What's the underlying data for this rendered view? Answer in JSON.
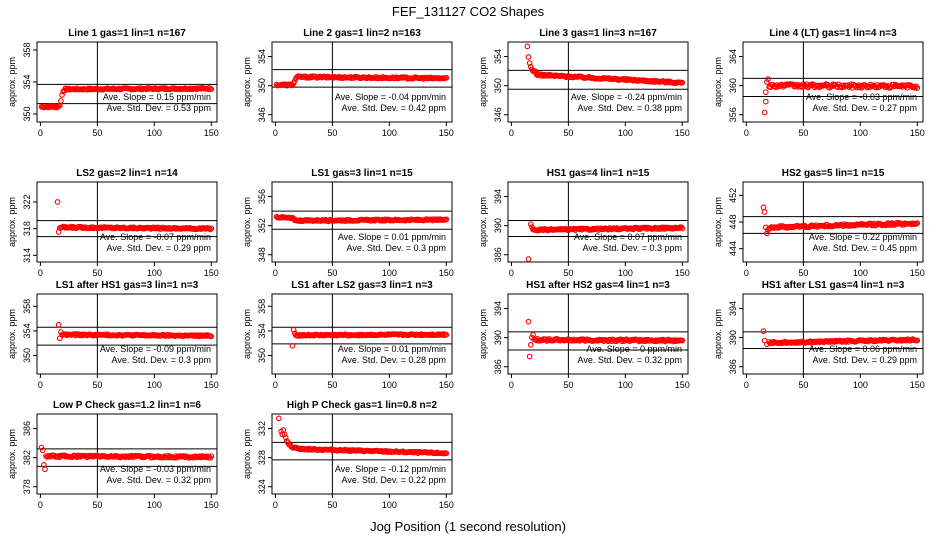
{
  "figure": {
    "title": "FEF_131127  CO2 Shapes",
    "xlabel": "Jog Position (1 second resolution)",
    "marker_color": "#ff0000"
  },
  "chart_data": [
    {
      "type": "scatter",
      "title": "Line 1 gas=1 lin=1 n=167",
      "ylabel": "approx. ppm",
      "xlim": [
        -3,
        155
      ],
      "ylim": [
        349,
        359
      ],
      "yticks": [
        350,
        354,
        358
      ],
      "xticks": [
        0,
        50,
        100,
        150
      ],
      "vline": 50,
      "hlines": [
        353.7,
        351.3
      ],
      "slope": "Ave. Slope =  0.15  ppm/min",
      "std": "Ave. Std. Dev. =  0.53  ppm",
      "segments": [
        {
          "x0": 1,
          "x1": 15,
          "y0": 350.9,
          "y1": 350.9,
          "shape": "flat"
        },
        {
          "x0": 15,
          "x1": 22,
          "y0": 350.9,
          "y1": 353.1,
          "shape": "sigmoid"
        },
        {
          "x0": 22,
          "x1": 150,
          "y0": 353.1,
          "y1": 353.2,
          "shape": "flat"
        }
      ],
      "noise": 0.1
    },
    {
      "type": "scatter",
      "title": "Line 2 gas=1 lin=2 n=163",
      "ylabel": "approx. ppm",
      "xlim": [
        -3,
        155
      ],
      "ylim": [
        345,
        356
      ],
      "yticks": [
        346,
        350,
        354
      ],
      "xticks": [
        0,
        50,
        100,
        150
      ],
      "vline": 50,
      "hlines": [
        352.2,
        349.8
      ],
      "slope": "Ave. Slope =  -0.04  ppm/min",
      "std": "Ave. Std. Dev. =  0.42  ppm",
      "segments": [
        {
          "x0": 1,
          "x1": 14,
          "y0": 350.1,
          "y1": 350.1,
          "shape": "flat"
        },
        {
          "x0": 14,
          "x1": 20,
          "y0": 350.1,
          "y1": 351.2,
          "shape": "sigmoid"
        },
        {
          "x0": 20,
          "x1": 150,
          "y0": 351.2,
          "y1": 351.0,
          "shape": "flat"
        }
      ],
      "noise": 0.12
    },
    {
      "type": "scatter",
      "title": "Line 3 gas=1 lin=3 n=167",
      "ylabel": "approx. ppm",
      "xlim": [
        -3,
        155
      ],
      "ylim": [
        345,
        356
      ],
      "yticks": [
        346,
        350,
        354
      ],
      "xticks": [
        0,
        50,
        100,
        150
      ],
      "vline": 50,
      "hlines": [
        352.1,
        349.5
      ],
      "slope": "Ave. Slope =  -0.24  ppm/min",
      "std": "Ave. Std. Dev. =  0.38  ppm",
      "segments": [
        {
          "x0": 14,
          "x1": 22,
          "y0": 355.3,
          "y1": 351.8,
          "shape": "decay"
        },
        {
          "x0": 22,
          "x1": 150,
          "y0": 351.5,
          "y1": 350.4,
          "shape": "flat"
        }
      ],
      "noise": 0.12
    },
    {
      "type": "scatter",
      "title": "Line 4 (LT) gas=1 lin=4 n=3",
      "ylabel": "approx. ppm",
      "xlim": [
        -3,
        155
      ],
      "ylim": [
        355,
        366
      ],
      "yticks": [
        356,
        360,
        364
      ],
      "xticks": [
        0,
        50,
        100,
        150
      ],
      "vline": 50,
      "hlines": [
        361.0,
        358.5
      ],
      "slope": "Ave. Slope =  -0.03  ppm/min",
      "std": "Ave. Std. Dev. =  0.27  ppm",
      "points": [
        [
          16,
          356.3
        ],
        [
          17,
          357.8
        ],
        [
          17,
          359.1
        ],
        [
          18,
          360.5
        ],
        [
          19,
          360.9
        ]
      ],
      "segments": [
        {
          "x0": 20,
          "x1": 150,
          "y0": 360.0,
          "y1": 359.9,
          "shape": "flat"
        }
      ],
      "noise": 0.25
    },
    {
      "type": "scatter",
      "title": "LS2 gas=2 lin=1 n=14",
      "ylabel": "approx. ppm",
      "xlim": [
        -3,
        155
      ],
      "ylim": [
        313,
        325
      ],
      "yticks": [
        314,
        318,
        322
      ],
      "xticks": [
        0,
        50,
        100,
        150
      ],
      "vline": 50,
      "hlines": [
        319.2,
        316.8
      ],
      "slope": "Ave. Slope =  -0.07  ppm/min",
      "std": "Ave. Std. Dev. =  0.29  ppm",
      "points": [
        [
          15,
          322.0
        ],
        [
          16,
          317.5
        ],
        [
          17,
          318.1
        ]
      ],
      "segments": [
        {
          "x0": 18,
          "x1": 150,
          "y0": 318.2,
          "y1": 318.0,
          "shape": "flat"
        }
      ],
      "noise": 0.12
    },
    {
      "type": "scatter",
      "title": "LS1 gas=3 lin=1 n=15",
      "ylabel": "approx. ppm",
      "xlim": [
        -3,
        155
      ],
      "ylim": [
        347,
        358
      ],
      "yticks": [
        348,
        352,
        356
      ],
      "xticks": [
        0,
        50,
        100,
        150
      ],
      "vline": 50,
      "hlines": [
        354.0,
        351.5
      ],
      "slope": "Ave. Slope =  0.01  ppm/min",
      "std": "Ave. Std. Dev. =  0.3  ppm",
      "segments": [
        {
          "x0": 1,
          "x1": 15,
          "y0": 353.2,
          "y1": 353.0,
          "shape": "flat"
        },
        {
          "x0": 15,
          "x1": 22,
          "y0": 353.0,
          "y1": 352.7,
          "shape": "decay"
        },
        {
          "x0": 22,
          "x1": 150,
          "y0": 352.7,
          "y1": 352.8,
          "shape": "flat"
        }
      ],
      "noise": 0.1
    },
    {
      "type": "scatter",
      "title": "HS1 gas=4 lin=1 n=15",
      "ylabel": "approx. ppm",
      "xlim": [
        -3,
        155
      ],
      "ylim": [
        385,
        396
      ],
      "yticks": [
        386,
        390,
        394
      ],
      "xticks": [
        0,
        50,
        100,
        150
      ],
      "vline": 50,
      "hlines": [
        390.7,
        388.5
      ],
      "slope": "Ave. Slope =  0.07  ppm/min",
      "std": "Ave. Std. Dev. =  0.3  ppm",
      "points": [
        [
          15,
          385.4
        ],
        [
          17,
          390.2
        ],
        [
          18,
          389.8
        ]
      ],
      "segments": [
        {
          "x0": 19,
          "x1": 150,
          "y0": 389.4,
          "y1": 389.7,
          "shape": "flat"
        }
      ],
      "noise": 0.12
    },
    {
      "type": "scatter",
      "title": "HS2 gas=5 lin=1 n=15",
      "ylabel": "approx. ppm",
      "xlim": [
        -3,
        155
      ],
      "ylim": [
        442,
        454
      ],
      "yticks": [
        444,
        448,
        452
      ],
      "xticks": [
        0,
        50,
        100,
        150
      ],
      "vline": 50,
      "hlines": [
        448.8,
        446.3
      ],
      "slope": "Ave. Slope =  0.22  ppm/min",
      "std": "Ave. Std. Dev. =  0.45  ppm",
      "points": [
        [
          15,
          450.2
        ],
        [
          16,
          449.5
        ],
        [
          17,
          447.2
        ],
        [
          18,
          446.3
        ],
        [
          19,
          446.8
        ]
      ],
      "segments": [
        {
          "x0": 20,
          "x1": 150,
          "y0": 447.2,
          "y1": 447.8,
          "shape": "flat"
        }
      ],
      "noise": 0.18
    },
    {
      "type": "scatter",
      "title": "LS1 after HS1 gas=3 lin=1 n=3",
      "ylabel": "approx. ppm",
      "xlim": [
        -3,
        155
      ],
      "ylim": [
        347,
        360
      ],
      "yticks": [
        350,
        354,
        358
      ],
      "xticks": [
        0,
        50,
        100,
        150
      ],
      "vline": 50,
      "hlines": [
        354.6,
        351.7
      ],
      "slope": "Ave. Slope =  -0.09  ppm/min",
      "std": "Ave. Std. Dev. =  0.3  ppm",
      "points": [
        [
          16,
          355.0
        ],
        [
          17,
          352.8
        ],
        [
          18,
          353.8
        ]
      ],
      "segments": [
        {
          "x0": 19,
          "x1": 150,
          "y0": 353.4,
          "y1": 353.2,
          "shape": "flat"
        }
      ],
      "noise": 0.12
    },
    {
      "type": "scatter",
      "title": "LS1 after LS2 gas=3 lin=1 n=3",
      "ylabel": "approx. ppm",
      "xlim": [
        -3,
        155
      ],
      "ylim": [
        347,
        360
      ],
      "yticks": [
        350,
        354,
        358
      ],
      "xticks": [
        0,
        50,
        100,
        150
      ],
      "vline": 50,
      "hlines": [
        354.6,
        351.9
      ],
      "slope": "Ave. Slope =  0.01  ppm/min",
      "std": "Ave. Std. Dev. =  0.28  ppm",
      "points": [
        [
          15,
          351.6
        ],
        [
          16,
          354.2
        ],
        [
          17,
          353.6
        ]
      ],
      "segments": [
        {
          "x0": 18,
          "x1": 150,
          "y0": 353.3,
          "y1": 353.4,
          "shape": "flat"
        }
      ],
      "noise": 0.12
    },
    {
      "type": "scatter",
      "title": "HS1 after HS2 gas=4 lin=1 n=3",
      "ylabel": "approx. ppm",
      "xlim": [
        -3,
        155
      ],
      "ylim": [
        385,
        396
      ],
      "yticks": [
        386,
        390,
        394
      ],
      "xticks": [
        0,
        50,
        100,
        150
      ],
      "vline": 50,
      "hlines": [
        390.8,
        388.3
      ],
      "slope": "Ave. Slope =  0",
      "std": "Ave. Std. Dev. =  0.32  ppm",
      "points": [
        [
          15,
          392.2
        ],
        [
          16,
          387.4
        ],
        [
          17,
          389.0
        ],
        [
          18,
          390.0
        ],
        [
          19,
          390.4
        ]
      ],
      "segments": [
        {
          "x0": 20,
          "x1": 150,
          "y0": 389.7,
          "y1": 389.6,
          "shape": "flat"
        }
      ],
      "noise": 0.15
    },
    {
      "type": "scatter",
      "title": "HS1 after LS1 gas=4 lin=1 n=3",
      "ylabel": "approx. ppm",
      "xlim": [
        -3,
        155
      ],
      "ylim": [
        385,
        396
      ],
      "yticks": [
        386,
        390,
        394
      ],
      "xticks": [
        0,
        50,
        100,
        150
      ],
      "vline": 50,
      "hlines": [
        390.8,
        388.5
      ],
      "slope": "Ave. Slope =  0.06  ppm/min",
      "std": "Ave. Std. Dev. =  0.29  ppm",
      "points": [
        [
          15,
          390.9
        ],
        [
          16,
          389.6
        ],
        [
          18,
          389.1
        ]
      ],
      "segments": [
        {
          "x0": 20,
          "x1": 150,
          "y0": 389.3,
          "y1": 389.7,
          "shape": "flat"
        }
      ],
      "noise": 0.12
    },
    {
      "type": "scatter",
      "title": "Low P Check gas=1.2 lin=1 n=6",
      "ylabel": "approx. ppm",
      "xlim": [
        -3,
        155
      ],
      "ylim": [
        377,
        388
      ],
      "yticks": [
        378,
        382,
        386
      ],
      "xticks": [
        0,
        50,
        100,
        150
      ],
      "vline": 50,
      "hlines": [
        383.2,
        380.8
      ],
      "slope": "Ave. Slope =  -0.03  ppm/min",
      "std": "Ave. Std. Dev. =  0.32  ppm",
      "points": [
        [
          1,
          383.4
        ],
        [
          2,
          383.0
        ],
        [
          3,
          381.0
        ],
        [
          4,
          380.4
        ],
        [
          5,
          382.2
        ]
      ],
      "segments": [
        {
          "x0": 6,
          "x1": 150,
          "y0": 382.2,
          "y1": 382.1,
          "shape": "flat"
        }
      ],
      "noise": 0.14
    },
    {
      "type": "scatter",
      "title": "High P Check gas=1 lin=0.8 n=2",
      "ylabel": "approx. ppm",
      "xlim": [
        -3,
        155
      ],
      "ylim": [
        323,
        334
      ],
      "yticks": [
        324,
        328,
        332
      ],
      "xticks": [
        0,
        50,
        100,
        150
      ],
      "vline": 50,
      "hlines": [
        330.1,
        327.7
      ],
      "slope": "Ave. Slope =  -0.12  ppm/min",
      "std": "Ave. Std. Dev. =  0.22  ppm",
      "points": [
        [
          3,
          333.4
        ],
        [
          5,
          331.6
        ],
        [
          6,
          331.2
        ],
        [
          7,
          331.8
        ],
        [
          8,
          331.2
        ]
      ],
      "segments": [
        {
          "x0": 9,
          "x1": 20,
          "y0": 330.8,
          "y1": 329.3,
          "shape": "decay"
        },
        {
          "x0": 20,
          "x1": 150,
          "y0": 329.2,
          "y1": 328.6,
          "shape": "flat"
        }
      ],
      "noise": 0.1
    }
  ]
}
